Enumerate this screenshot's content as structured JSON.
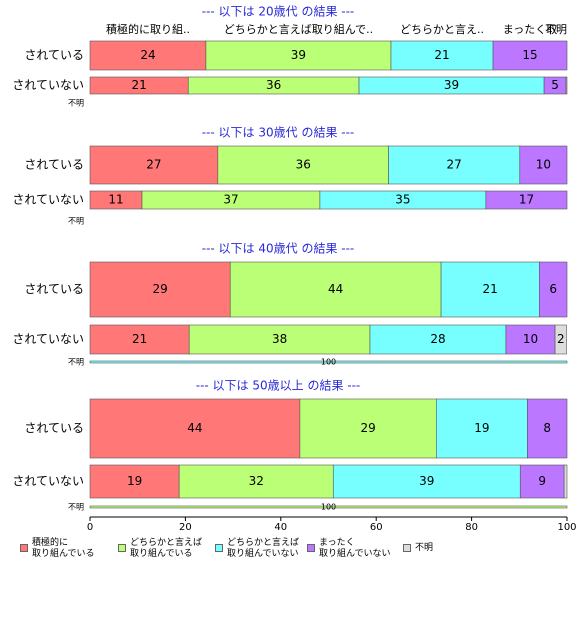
{
  "chart_data": {
    "type": "stacked_bar",
    "orientation": "horizontal",
    "xlim": [
      0,
      100
    ],
    "xticks": [
      0,
      20,
      40,
      60,
      80,
      100
    ],
    "column_labels": [
      "積極的に取り組..",
      "どちらかと言えば取り組んで..",
      "どちらかと言え..",
      "まったく取",
      "不明"
    ],
    "series": [
      {
        "name": "積極的に\n取り組んでいる",
        "color": "#ff7777"
      },
      {
        "name": "どちらかと言えば\n取り組んでいる",
        "color": "#bbff77"
      },
      {
        "name": "どちらかと言えば\n取り組んでいない",
        "color": "#77ffff"
      },
      {
        "name": "まったく\n取り組んでいない",
        "color": "#bb77ff"
      },
      {
        "name": "不明",
        "color": "#dddddd"
      }
    ],
    "panels": [
      {
        "title": "--- 以下は 20歳代 の結果 ---",
        "rows": [
          {
            "label": "されている",
            "values": [
              24.3,
              38.8,
              21.4,
              15.5,
              0
            ],
            "value_labels": [
              "24",
              "39",
              "21",
              "15",
              null
            ]
          },
          {
            "label": "されていない",
            "values": [
              20.6,
              35.8,
              38.8,
              4.6,
              0.2
            ],
            "value_labels": [
              "21",
              "36",
              "39",
              "5",
              null
            ]
          },
          {
            "label": "不明",
            "values": null
          }
        ]
      },
      {
        "title": "--- 以下は 30歳代 の結果 ---",
        "rows": [
          {
            "label": "されている",
            "values": [
              26.8,
              35.8,
              27.5,
              9.9,
              0
            ],
            "value_labels": [
              "27",
              "36",
              "27",
              "10",
              null
            ]
          },
          {
            "label": "されていない",
            "values": [
              10.9,
              37.3,
              34.8,
              17.0,
              0
            ],
            "value_labels": [
              "11",
              "37",
              "35",
              "17",
              null
            ]
          },
          {
            "label": "不明",
            "values": null
          }
        ]
      },
      {
        "title": "--- 以下は 40歳代 の結果 ---",
        "rows": [
          {
            "label": "されている",
            "values": [
              29.4,
              44.2,
              20.6,
              5.8,
              0
            ],
            "value_labels": [
              "29",
              "44",
              "21",
              "6",
              null
            ]
          },
          {
            "label": "されていない",
            "values": [
              20.8,
              37.9,
              28.5,
              10.3,
              2.4
            ],
            "value_labels": [
              "21",
              "38",
              "28",
              "10",
              "2"
            ]
          },
          {
            "label": "不明",
            "values": [
              0,
              0,
              100,
              0,
              0
            ],
            "value_labels": [
              null,
              null,
              "100",
              null,
              null
            ]
          }
        ]
      },
      {
        "title": "--- 以下は 50歳以上 の結果 ---",
        "rows": [
          {
            "label": "されている",
            "values": [
              44.0,
              28.6,
              19.1,
              8.3,
              0
            ],
            "value_labels": [
              "44",
              "29",
              "19",
              "8",
              null
            ]
          },
          {
            "label": "されていない",
            "values": [
              18.7,
              32.3,
              39.2,
              9.2,
              0.6
            ],
            "value_labels": [
              "19",
              "32",
              "39",
              "9",
              null
            ]
          },
          {
            "label": "不明",
            "values": [
              0,
              100,
              0,
              0,
              0
            ],
            "value_labels": [
              null,
              "100",
              null,
              null,
              null
            ]
          }
        ]
      }
    ]
  }
}
